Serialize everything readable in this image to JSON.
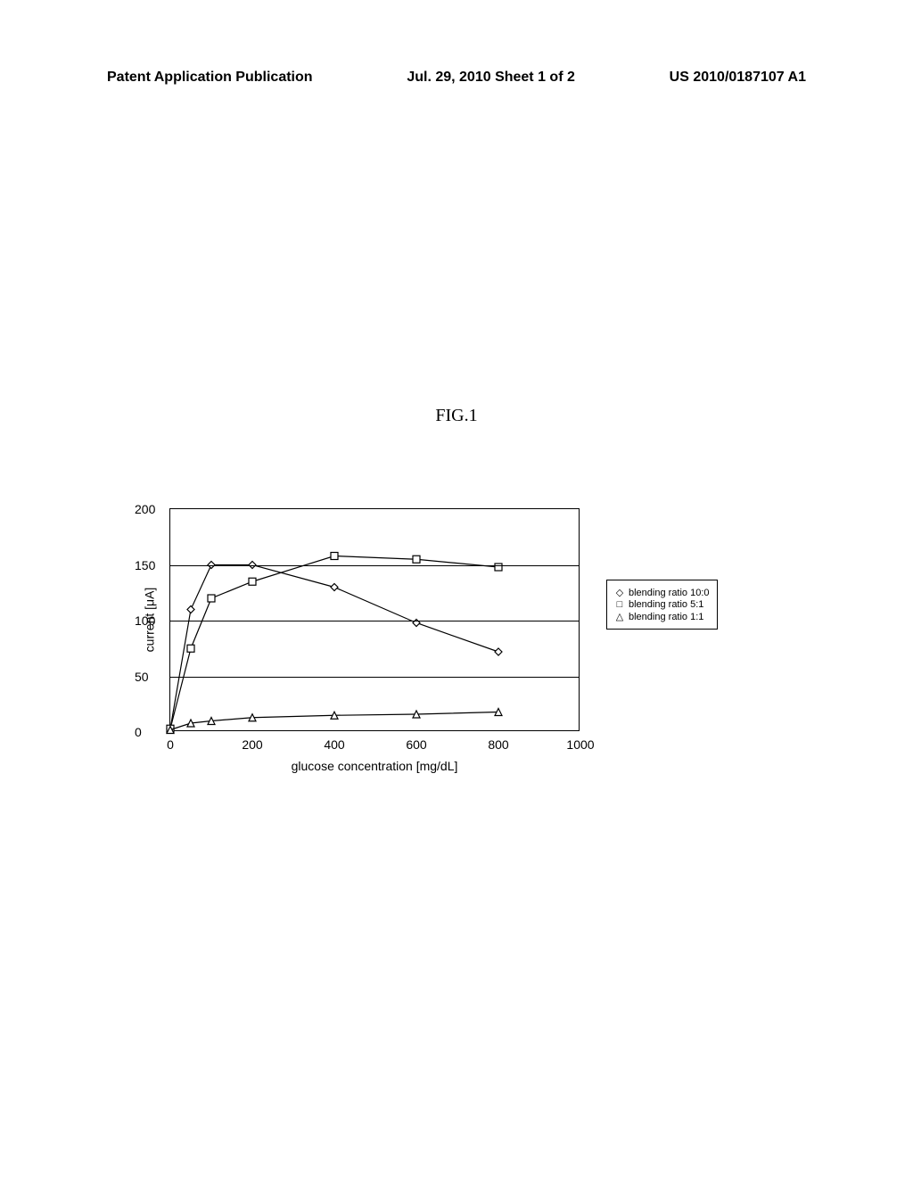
{
  "header": {
    "left": "Patent Application Publication",
    "center": "Jul. 29, 2010  Sheet 1 of 2",
    "right": "US 2010/0187107 A1"
  },
  "figure_title": "FIG.1",
  "chart": {
    "type": "line",
    "xlabel": "glucose concentration [mg/dL]",
    "ylabel": "current [μA]",
    "xlim": [
      0,
      1000
    ],
    "ylim": [
      0,
      200
    ],
    "xticks": [
      0,
      200,
      400,
      600,
      800,
      1000
    ],
    "yticks": [
      0,
      50,
      100,
      150,
      200
    ],
    "gridlines_y": [
      50,
      100,
      150
    ],
    "background_color": "#ffffff",
    "line_color": "#000000",
    "marker_size": 8,
    "line_width": 1.2,
    "series": [
      {
        "name": "blending ratio 10:0",
        "marker": "diamond",
        "x": [
          0,
          50,
          100,
          200,
          400,
          600,
          800
        ],
        "y": [
          3,
          110,
          150,
          150,
          130,
          98,
          72
        ]
      },
      {
        "name": "blending ratio 5:1",
        "marker": "square",
        "x": [
          0,
          50,
          100,
          200,
          400,
          600,
          800
        ],
        "y": [
          3,
          75,
          120,
          135,
          158,
          155,
          148
        ]
      },
      {
        "name": "blending ratio 1:1",
        "marker": "triangle",
        "x": [
          0,
          50,
          100,
          200,
          400,
          600,
          800
        ],
        "y": [
          2,
          8,
          10,
          13,
          15,
          16,
          18
        ]
      }
    ]
  },
  "legend": {
    "items": [
      {
        "symbol": "◇",
        "label": "blending ratio 10:0"
      },
      {
        "symbol": "□",
        "label": "blending ratio  5:1"
      },
      {
        "symbol": "△",
        "label": "blending ratio  1:1"
      }
    ]
  }
}
